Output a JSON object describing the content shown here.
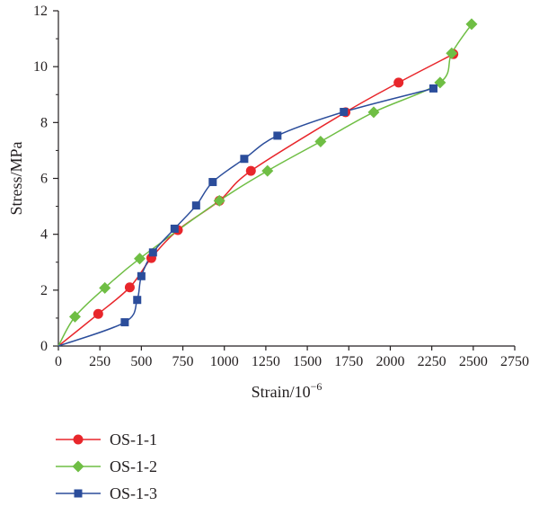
{
  "chart_data": {
    "type": "line",
    "xlabel": "Strain/10",
    "xlabel_exponent": "−6",
    "ylabel": "Stress/MPa",
    "xlim": [
      0,
      2750
    ],
    "ylim": [
      0,
      12
    ],
    "xticks": [
      "0",
      "250",
      "500",
      "750",
      "1000",
      "1250",
      "1500",
      "1750",
      "2000",
      "2250",
      "2500",
      "2750"
    ],
    "yticks": [
      "0",
      "2",
      "4",
      "6",
      "8",
      "10",
      "12"
    ],
    "grid": false,
    "legend_position": "bottom-left",
    "series": [
      {
        "name": "OS-1-1",
        "color": "#e8262b",
        "marker": "circle",
        "points": [
          [
            0,
            0
          ],
          [
            240,
            1.15
          ],
          [
            430,
            2.1
          ],
          [
            560,
            3.15
          ],
          [
            720,
            4.15
          ],
          [
            970,
            5.2
          ],
          [
            1160,
            6.27
          ],
          [
            1730,
            8.37
          ],
          [
            2050,
            9.43
          ],
          [
            2380,
            10.45
          ]
        ]
      },
      {
        "name": "OS-1-2",
        "color": "#6fbe44",
        "marker": "diamond",
        "points": [
          [
            0,
            0
          ],
          [
            100,
            1.05
          ],
          [
            280,
            2.08
          ],
          [
            490,
            3.13
          ],
          [
            970,
            5.2
          ],
          [
            1260,
            6.27
          ],
          [
            1580,
            7.32
          ],
          [
            1900,
            8.37
          ],
          [
            2300,
            9.43
          ],
          [
            2370,
            10.48
          ],
          [
            2490,
            11.52
          ]
        ]
      },
      {
        "name": "OS-1-3",
        "color": "#2b4d9b",
        "marker": "square",
        "points": [
          [
            0,
            0
          ],
          [
            400,
            0.85
          ],
          [
            475,
            1.65
          ],
          [
            500,
            2.5
          ],
          [
            570,
            3.35
          ],
          [
            700,
            4.2
          ],
          [
            830,
            5.03
          ],
          [
            930,
            5.87
          ],
          [
            1120,
            6.7
          ],
          [
            1320,
            7.53
          ],
          [
            1720,
            8.38
          ],
          [
            2260,
            9.22
          ]
        ]
      }
    ]
  }
}
